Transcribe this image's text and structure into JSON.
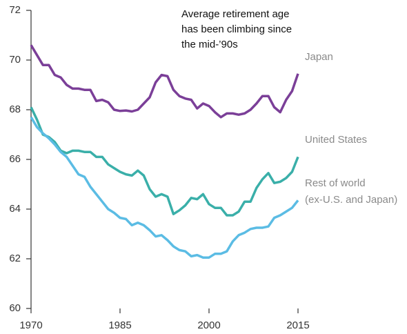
{
  "chart_data": {
    "type": "line",
    "annotation": "Average retirement age has been climbing since the mid-’90s",
    "x": [
      1970,
      1971,
      1972,
      1973,
      1974,
      1975,
      1976,
      1977,
      1978,
      1979,
      1980,
      1981,
      1982,
      1983,
      1984,
      1985,
      1986,
      1987,
      1988,
      1989,
      1990,
      1991,
      1992,
      1993,
      1994,
      1995,
      1996,
      1997,
      1998,
      1999,
      2000,
      2001,
      2002,
      2003,
      2004,
      2005,
      2006,
      2007,
      2008,
      2009,
      2010,
      2011,
      2012,
      2013,
      2014,
      2015
    ],
    "series": [
      {
        "name": "Japan",
        "color": "#7b3f98",
        "values": [
          70.6,
          70.2,
          69.8,
          69.8,
          69.4,
          69.3,
          69.0,
          68.85,
          68.85,
          68.8,
          68.8,
          68.35,
          68.4,
          68.3,
          68.0,
          67.95,
          67.97,
          67.93,
          68.0,
          68.25,
          68.5,
          69.1,
          69.4,
          69.35,
          68.8,
          68.55,
          68.45,
          68.4,
          68.05,
          68.25,
          68.15,
          67.9,
          67.7,
          67.85,
          67.85,
          67.8,
          67.85,
          68.0,
          68.25,
          68.55,
          68.55,
          68.1,
          67.9,
          68.4,
          68.75,
          69.45
        ]
      },
      {
        "name": "United States",
        "color": "#3aafa9",
        "values": [
          68.1,
          67.6,
          67.0,
          66.9,
          66.7,
          66.35,
          66.25,
          66.35,
          66.35,
          66.3,
          66.3,
          66.1,
          66.1,
          65.8,
          65.65,
          65.5,
          65.4,
          65.35,
          65.55,
          65.35,
          64.8,
          64.5,
          64.6,
          64.5,
          63.8,
          63.95,
          64.15,
          64.45,
          64.4,
          64.6,
          64.2,
          64.05,
          64.05,
          63.75,
          63.75,
          63.9,
          64.3,
          64.3,
          64.85,
          65.2,
          65.45,
          65.05,
          65.1,
          65.25,
          65.5,
          66.1
        ]
      },
      {
        "name": "Rest of world\n(ex-U.S. and Japan)",
        "color": "#5bbce4",
        "values": [
          67.7,
          67.3,
          67.05,
          66.85,
          66.6,
          66.3,
          66.1,
          65.75,
          65.4,
          65.3,
          64.9,
          64.6,
          64.3,
          64.0,
          63.85,
          63.65,
          63.6,
          63.35,
          63.45,
          63.35,
          63.15,
          62.9,
          62.95,
          62.75,
          62.5,
          62.35,
          62.3,
          62.1,
          62.15,
          62.05,
          62.05,
          62.2,
          62.2,
          62.3,
          62.7,
          62.95,
          63.05,
          63.2,
          63.25,
          63.25,
          63.3,
          63.65,
          63.75,
          63.9,
          64.05,
          64.35
        ]
      }
    ],
    "xlim": [
      1970,
      2015
    ],
    "xticks": [
      1970,
      1985,
      2000,
      2015
    ],
    "ylim": [
      60,
      72
    ],
    "yticks": [
      60,
      62,
      64,
      66,
      68,
      70,
      72
    ],
    "grid": false
  }
}
